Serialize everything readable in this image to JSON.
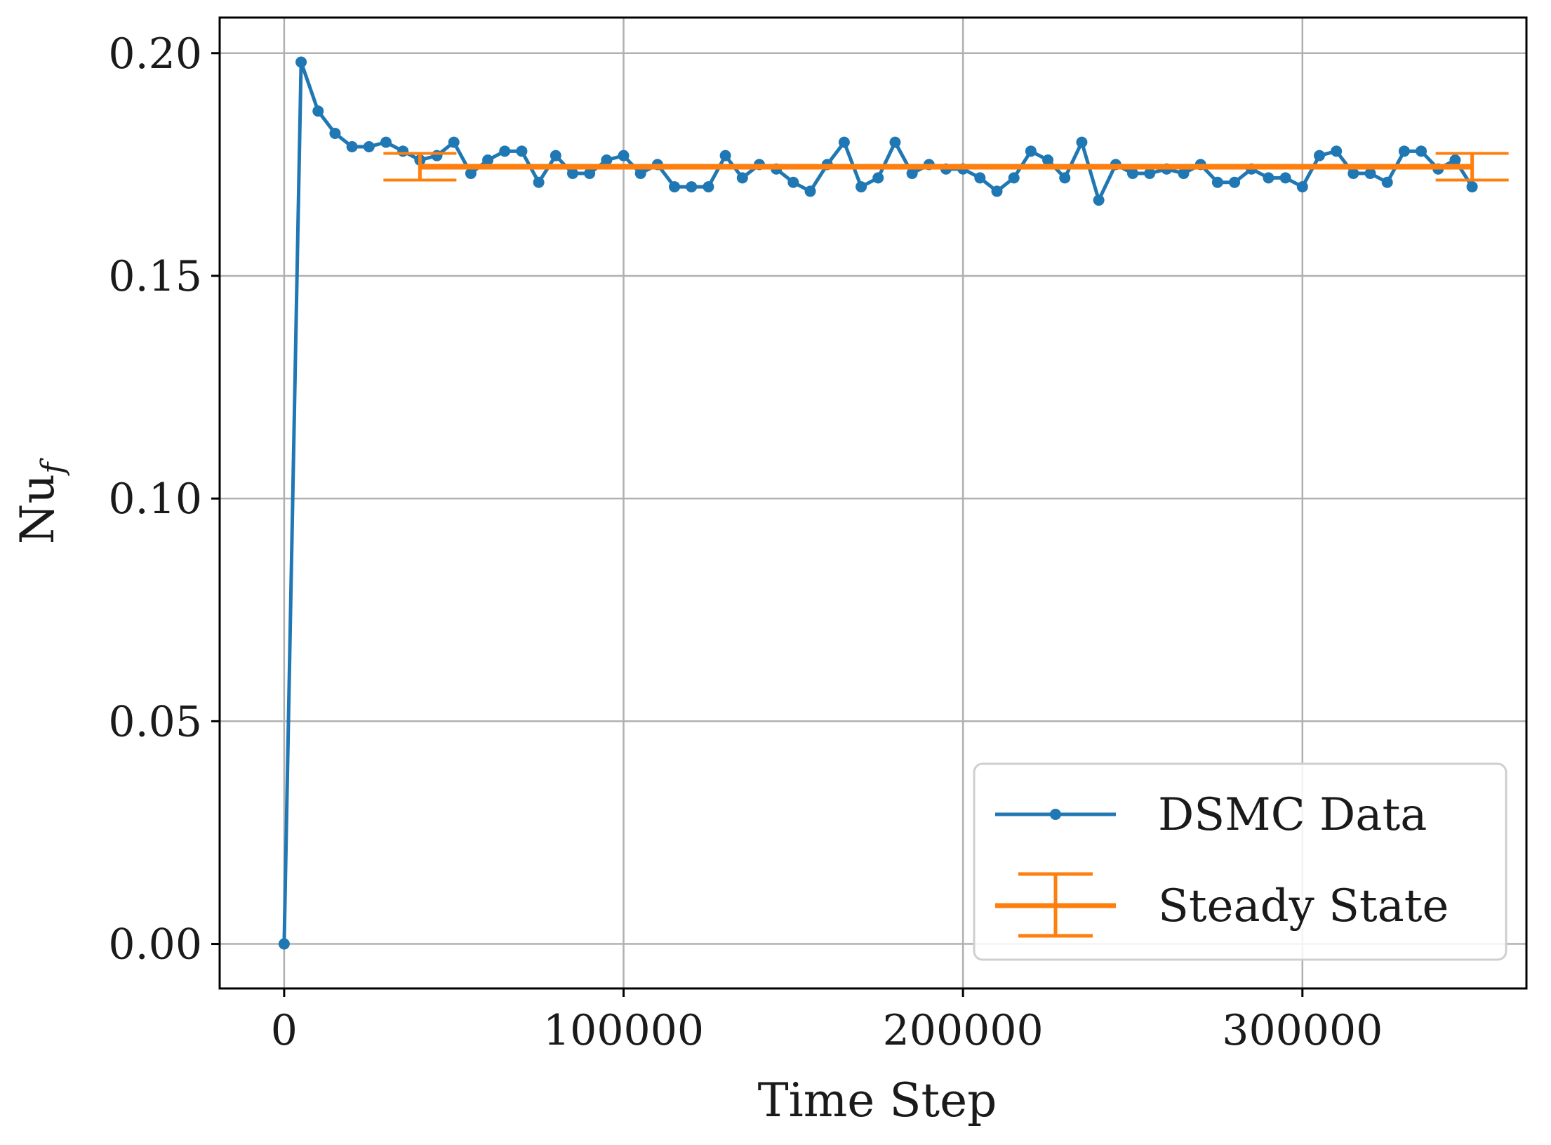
{
  "chart_data": {
    "type": "line",
    "title": "",
    "xlabel": "Time Step",
    "ylabel_main": "Nu",
    "ylabel_sub": "f",
    "xlim": [
      -19000,
      366000
    ],
    "ylim": [
      -0.01,
      0.208
    ],
    "grid": true,
    "legend_position": "lower-right",
    "x_ticks": [
      0,
      100000,
      200000,
      300000
    ],
    "x_tick_labels": [
      "0",
      "100000",
      "200000",
      "300000"
    ],
    "y_ticks": [
      0.0,
      0.05,
      0.1,
      0.15,
      0.2
    ],
    "y_tick_labels": [
      "0.00",
      "0.05",
      "0.10",
      "0.15",
      "0.20"
    ],
    "series": [
      {
        "name": "DSMC Data",
        "type": "line-marker",
        "color": "#1f77b4",
        "x": [
          0,
          5000,
          10000,
          15000,
          20000,
          25000,
          30000,
          35000,
          40000,
          45000,
          50000,
          55000,
          60000,
          65000,
          70000,
          75000,
          80000,
          85000,
          90000,
          95000,
          100000,
          105000,
          110000,
          115000,
          120000,
          125000,
          130000,
          135000,
          140000,
          145000,
          150000,
          155000,
          160000,
          165000,
          170000,
          175000,
          180000,
          185000,
          190000,
          195000,
          200000,
          205000,
          210000,
          215000,
          220000,
          225000,
          230000,
          235000,
          240000,
          245000,
          250000,
          255000,
          260000,
          265000,
          270000,
          275000,
          280000,
          285000,
          290000,
          295000,
          300000,
          305000,
          310000,
          315000,
          320000,
          325000,
          330000,
          335000,
          340000,
          345000,
          350000
        ],
        "values": [
          0.0,
          0.198,
          0.187,
          0.182,
          0.179,
          0.179,
          0.18,
          0.178,
          0.176,
          0.177,
          0.18,
          0.173,
          0.176,
          0.178,
          0.178,
          0.171,
          0.177,
          0.173,
          0.173,
          0.176,
          0.177,
          0.173,
          0.175,
          0.17,
          0.17,
          0.17,
          0.177,
          0.172,
          0.175,
          0.174,
          0.171,
          0.169,
          0.175,
          0.18,
          0.17,
          0.172,
          0.18,
          0.173,
          0.175,
          0.174,
          0.174,
          0.172,
          0.169,
          0.172,
          0.178,
          0.176,
          0.172,
          0.18,
          0.167,
          0.175,
          0.173,
          0.173,
          0.174,
          0.173,
          0.175,
          0.171,
          0.171,
          0.174,
          0.172,
          0.172,
          0.17,
          0.177,
          0.178,
          0.173,
          0.173,
          0.171,
          0.178,
          0.178,
          0.174,
          0.176,
          0.17
        ]
      },
      {
        "name": "Steady State",
        "type": "errorbar-line",
        "color": "#ff7f0e",
        "x": [
          40000,
          350000
        ],
        "values": [
          0.1745,
          0.1745
        ],
        "error": 0.003
      }
    ]
  }
}
